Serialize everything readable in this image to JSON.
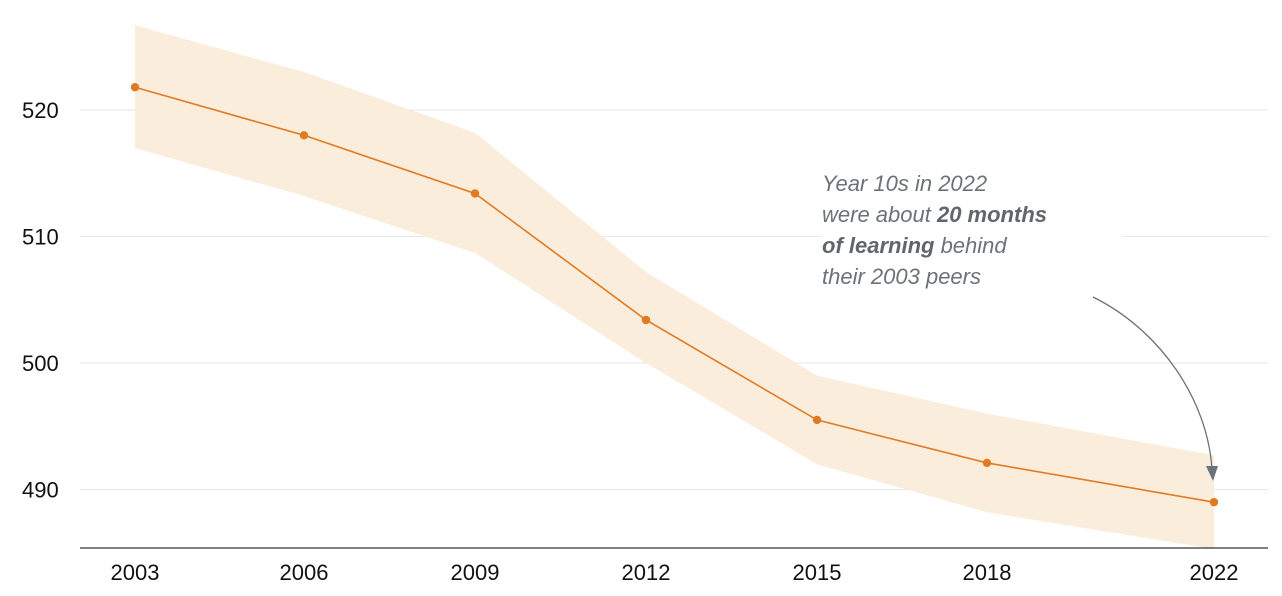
{
  "chart_data": {
    "type": "line",
    "x": [
      "2003",
      "2006",
      "2009",
      "2012",
      "2015",
      "2018",
      "2022"
    ],
    "series": [
      {
        "values": [
          521.8,
          518.0,
          513.4,
          503.4,
          495.5,
          492.1,
          489.0
        ],
        "lower": [
          517.0,
          513.2,
          508.7,
          500.0,
          492.0,
          488.2,
          485.3
        ],
        "upper": [
          526.7,
          523.0,
          518.2,
          507.2,
          499.0,
          496.0,
          492.7
        ]
      }
    ],
    "yticks": [
      490,
      500,
      510,
      520
    ],
    "ylim": [
      485,
      527
    ],
    "grid": true,
    "colors": {
      "line": "#e07b24",
      "band": "#fbeddc",
      "arrow": "#6b7278",
      "annotation": "#6b7278"
    },
    "annotation": {
      "line1": "Year 10s in 2022",
      "line2_a": "were about ",
      "line2_b": "20 months",
      "line3_a": "of learning",
      "line3_b": " behind",
      "line4": "their 2003 peers"
    }
  }
}
